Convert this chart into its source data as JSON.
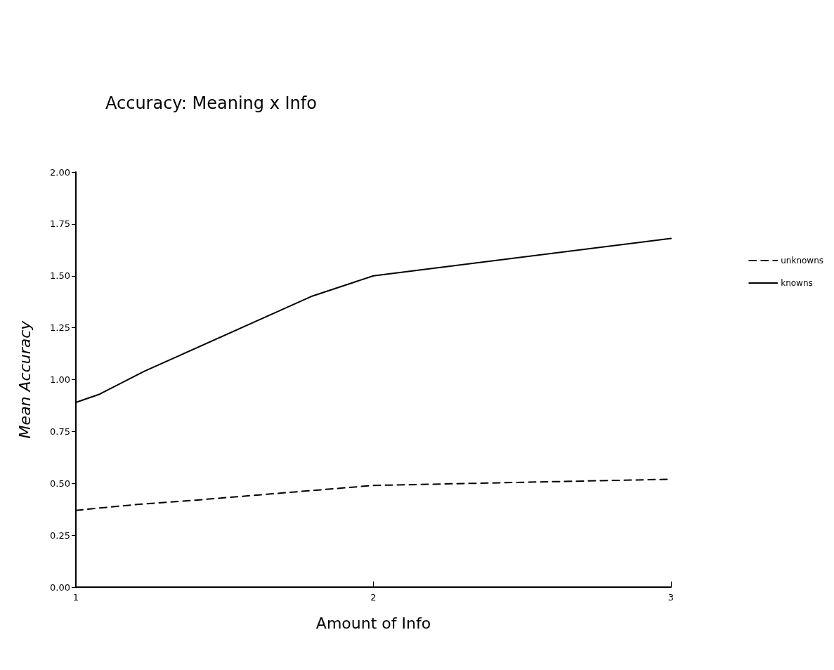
{
  "chart_data": {
    "type": "line",
    "title": "Accuracy: Meaning x Info",
    "xlabel": "Amount of Info",
    "ylabel": "Mean Accuracy",
    "series": [
      {
        "name": "unknowns",
        "color": "#000000",
        "line_style": "dashed",
        "x": [
          1,
          1.07,
          1.22,
          1.41,
          2,
          3
        ],
        "values": [
          0.37,
          0.38,
          0.4,
          0.42,
          0.49,
          0.52
        ]
      },
      {
        "name": "knowns",
        "color": "#000000",
        "line_style": "solid",
        "x": [
          1,
          1.08,
          1.23,
          1.79,
          2,
          3
        ],
        "values": [
          0.89,
          0.93,
          1.04,
          1.4,
          1.5,
          1.68
        ]
      }
    ],
    "xlim": [
      1,
      3
    ],
    "xticks": [
      1,
      2,
      3
    ],
    "ylim": [
      0,
      2
    ],
    "yticks": [
      {
        "value": 0,
        "label": "0.00"
      },
      {
        "value": 0.25,
        "label": "0.25"
      },
      {
        "value": 0.5,
        "label": "0.50"
      },
      {
        "value": 0.75,
        "label": "0.75"
      },
      {
        "value": 1,
        "label": "1.00"
      },
      {
        "value": 1.25,
        "label": "1.25"
      },
      {
        "value": 1.5,
        "label": "1.50"
      },
      {
        "value": 1.75,
        "label": "1.75"
      },
      {
        "value": 2,
        "label": "2.00"
      }
    ],
    "grid": false,
    "legend": "right",
    "marker": "none"
  }
}
